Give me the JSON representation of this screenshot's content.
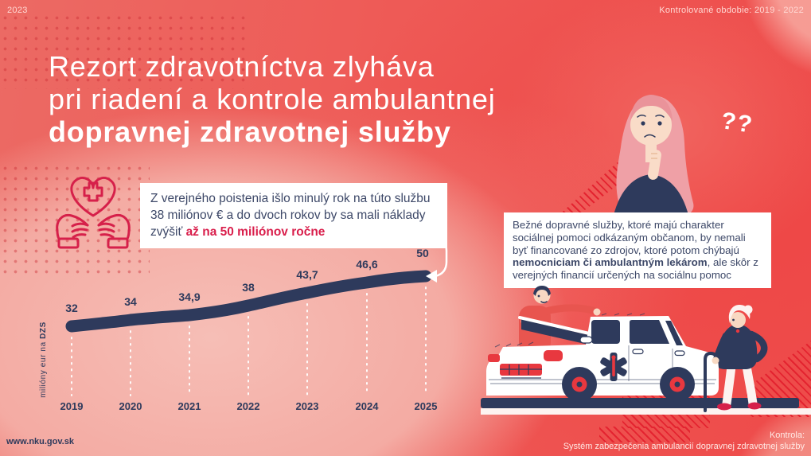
{
  "header": {
    "year": "2023",
    "audited_period": "Kontrolované obdobie: 2019 - 2022"
  },
  "title": {
    "line1": "Rezort zdravotníctva zlyháva",
    "line2": "pri riadení a kontrole ambulantnej",
    "line3": "dopravnej zdravotnej služby"
  },
  "notes": {
    "insurance": {
      "text": "Z verejného poistenia išlo minulý rok na túto službu 38 miliónov € a do dvoch rokov by sa mali náklady zvýšiť ",
      "highlight": "až na 50 miliónov ročne"
    },
    "transport": {
      "text_before": "Bežné dopravné služby, ktoré majú charakter sociálnej pomoci odkázaným občanom, by nemali byť financované zo zdrojov, ktoré potom chýbajú ",
      "bold": "nemocniciam či ambulantným lekárom",
      "text_after": ", ale skôr z verejných financií určených na sociálnu pomoc"
    }
  },
  "chart_data": {
    "type": "line",
    "x": [
      "2019",
      "2020",
      "2021",
      "2022",
      "2023",
      "2024",
      "2025"
    ],
    "values": [
      32,
      34,
      34.9,
      38,
      43.7,
      46.6,
      50
    ],
    "value_labels": [
      "32",
      "34",
      "34,9",
      "38",
      "43,7",
      "46,6",
      "50"
    ],
    "ylabel": "milióny eur na ",
    "ylabel_bold": "DZS",
    "ylabel_full": "milióny eur na DZS",
    "xlabel": "",
    "legend": "none",
    "grid": "dashed vertical line per year"
  },
  "illustration": {
    "question_marks": "??"
  },
  "footer": {
    "website": "www.nku.gov.sk",
    "control_label": "Kontrola:",
    "control_subject": "Systém zabezpečenia ambulancií dopravnej zdravotnej služby"
  },
  "colors": {
    "navy": "#2e3a5c",
    "accent_red": "#d6204a",
    "illustration_red": "#e8383f",
    "background_red": "#ee4e4d",
    "light_pink": "#f4b0a9",
    "white": "#ffffff"
  }
}
